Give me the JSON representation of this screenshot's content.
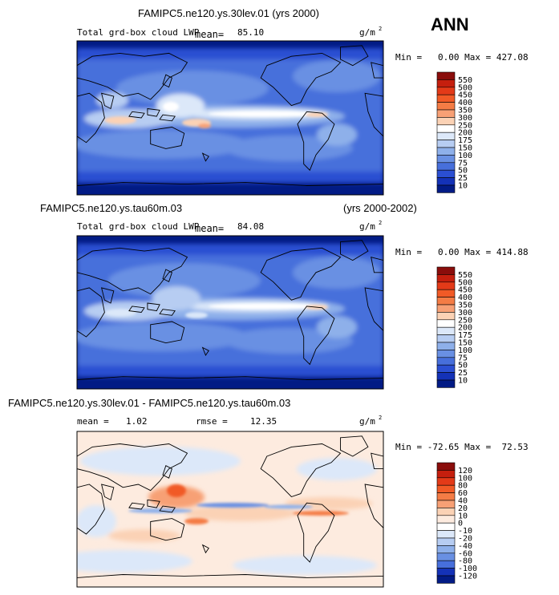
{
  "season": "ANN",
  "units_base": "g/m",
  "units_exp": "2",
  "colors": {
    "land_outline": "#000000",
    "frame": "#000000"
  },
  "chart_data": [
    {
      "type": "heatmap",
      "title": "FAMIPC5.ne120.ys.30lev.01 (yrs 2000)",
      "subtitle_prefix": "(yrs 2000)",
      "variable": "Total grd-box cloud LWP",
      "mean_label": "mean=",
      "mean": "85.10",
      "min_max": "Min =   0.00 Max = 427.08",
      "colorbar_levels": [
        "550",
        "500",
        "450",
        "400",
        "350",
        "300",
        "250",
        "200",
        "175",
        "150",
        "100",
        "75",
        "50",
        "25",
        "10"
      ],
      "colorbar_colors": [
        "#8a0d0b",
        "#c51f0e",
        "#e33a18",
        "#f15a26",
        "#f47c45",
        "#f7a075",
        "#fbd2b5",
        "#ffffff",
        "#dce8f9",
        "#b7cdf2",
        "#8eb0ea",
        "#6990e3",
        "#476fdb",
        "#2b4fd2",
        "#1432b7",
        "#021b85"
      ]
    },
    {
      "type": "heatmap",
      "title": "FAMIPC5.ne120.ys.tau60m.03",
      "subtitle_prefix": "(yrs 2000-2002)",
      "variable": "Total grd-box cloud LWP",
      "mean_label": "mean=",
      "mean": "84.08",
      "min_max": "Min =   0.00 Max = 414.88",
      "colorbar_levels": [
        "550",
        "500",
        "450",
        "400",
        "350",
        "300",
        "250",
        "200",
        "175",
        "150",
        "100",
        "75",
        "50",
        "25",
        "10"
      ],
      "colorbar_colors": [
        "#8a0d0b",
        "#c51f0e",
        "#e33a18",
        "#f15a26",
        "#f47c45",
        "#f7a075",
        "#fbd2b5",
        "#ffffff",
        "#dce8f9",
        "#b7cdf2",
        "#8eb0ea",
        "#6990e3",
        "#476fdb",
        "#2b4fd2",
        "#1432b7",
        "#021b85"
      ]
    },
    {
      "type": "heatmap",
      "title": "FAMIPC5.ne120.ys.30lev.01 - FAMIPC5.ne120.ys.tau60m.03",
      "mean_label": "mean =",
      "mean": "1.02",
      "rmse_label": "rmse =",
      "rmse": "12.35",
      "min_max": "Min = -72.65 Max =  72.53",
      "colorbar_levels": [
        "120",
        "100",
        "80",
        "60",
        "40",
        "20",
        "10",
        "0",
        "-10",
        "-20",
        "-40",
        "-60",
        "-80",
        "-100",
        "-120"
      ],
      "colorbar_colors": [
        "#8a0d0b",
        "#c51f0e",
        "#e33a18",
        "#f15a26",
        "#f47c45",
        "#f7a075",
        "#fbd2b5",
        "#fdebdf",
        "#ffffff",
        "#dce8f9",
        "#b7cdf2",
        "#8eb0ea",
        "#6990e3",
        "#476fdb",
        "#1432b7",
        "#021b85"
      ]
    }
  ]
}
